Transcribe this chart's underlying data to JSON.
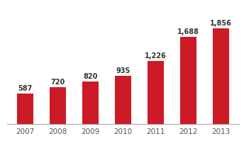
{
  "years": [
    "2007",
    "2008",
    "2009",
    "2010",
    "2011",
    "2012",
    "2013"
  ],
  "values": [
    587,
    720,
    820,
    935,
    1226,
    1688,
    1856
  ],
  "labels": [
    "587",
    "720",
    "820",
    "935",
    "1,226",
    "1,688",
    "1,856"
  ],
  "bar_color": "#cc1b26",
  "background_color": "#ffffff",
  "ylim": [
    0,
    2200
  ],
  "label_fontsize": 7.0,
  "tick_fontsize": 7.5,
  "bar_width": 0.5,
  "label_color": "#333333"
}
